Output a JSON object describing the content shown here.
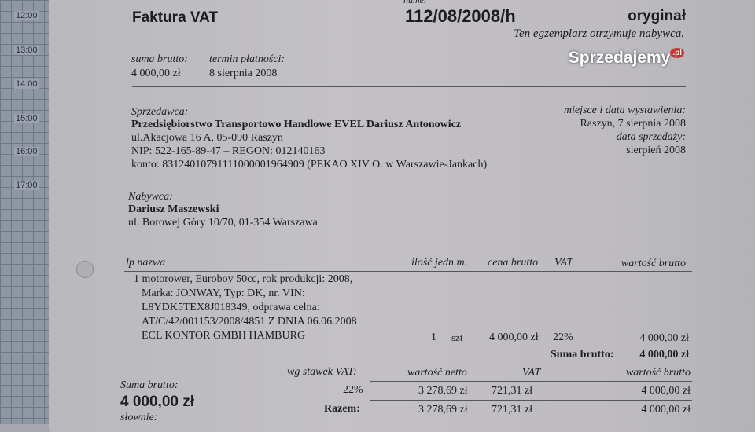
{
  "calendar": {
    "times": [
      "12:00",
      "13:00",
      "14:00",
      "15:00",
      "16:00",
      "17:00"
    ]
  },
  "invoice": {
    "title": "Faktura VAT",
    "number_label": "numer",
    "number": "112/08/2008/h",
    "copy_type": "oryginał",
    "copy_note": "Ten egzemplarz otrzymuje nabywca.",
    "sum_label": "suma brutto:",
    "sum_value": "4 000,00 zł",
    "due_label": "termin płatności:",
    "due_value": "8 sierpnia 2008",
    "seller": {
      "label": "Sprzedawca:",
      "name": "Przedsiębiorstwo Transportowo Handlowe EVEL Dariusz Antonowicz",
      "address": "ul.Akacjowa 16 A, 05-090 Raszyn",
      "ids": "NIP: 522-165-89-47  –  REGON: 012140163",
      "account": "konto: 83124010791111000001964909 (PEKAO XIV O. w Warszawie-Jankach)"
    },
    "place_date_label": "miejsce i data wystawienia:",
    "place_date": "Raszyn, 7 sierpnia 2008",
    "sale_date_label": "data sprzedaży:",
    "sale_date": "sierpień 2008",
    "buyer": {
      "label": "Nabywca:",
      "name": "Dariusz Maszewski",
      "address": "ul. Borowej Góry 10/70, 01-354 Warszawa"
    },
    "table": {
      "headers": {
        "name": "lp nazwa",
        "qty_unit": "ilość jedn.m.",
        "price": "cena brutto",
        "vat": "VAT",
        "value": "wartość brutto"
      },
      "rows": [
        {
          "desc": [
            "1 motorower, Euroboy 50cc, rok produkcji: 2008,",
            "Marka: JONWAY, Typ: DK, nr. VIN:",
            "L8YDK5TEX8J018349, odprawa celna:",
            "AT/C/42/001153/2008/4851 Z DNIA 06.06.2008",
            "ECL KONTOR GMBH HAMBURG"
          ],
          "qty": "1",
          "unit": "szt",
          "price": "4 000,00 zł",
          "vat": "22%",
          "value": "4 000,00 zł"
        }
      ],
      "total_label": "Suma brutto:",
      "total_value": "4 000,00 zł"
    },
    "vat_summary": {
      "headers": {
        "rate": "wg stawek VAT:",
        "net": "wartość netto",
        "vat": "VAT",
        "gross": "wartość brutto"
      },
      "rows": [
        {
          "rate": "22%",
          "net": "3 278,69 zł",
          "vat": "721,31 zł",
          "gross": "4 000,00 zł"
        }
      ],
      "total": {
        "label": "Razem:",
        "net": "3 278,69 zł",
        "vat": "721,31 zł",
        "gross": "4 000,00 zł"
      }
    },
    "bottom_sum_label": "Suma brutto:",
    "bottom_sum_value": "4 000,00 zł",
    "in_words_label": "słownie:"
  },
  "watermark": "Sprzedajemy.pl"
}
